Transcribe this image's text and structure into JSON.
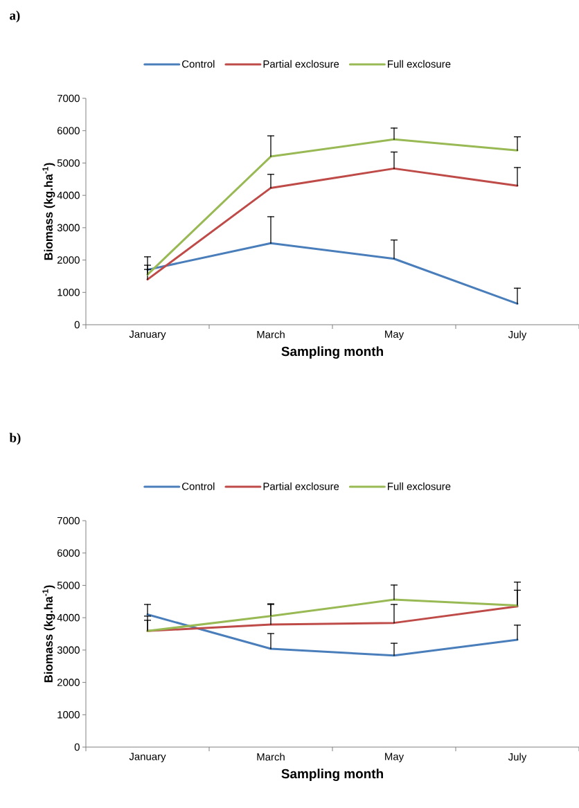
{
  "chart_data": [
    {
      "type": "line",
      "title": "a)",
      "xlabel": "Sampling month",
      "ylabel": "Biomass (kg.ha$^{-1}$)",
      "categories": [
        "January",
        "March",
        "May",
        "July"
      ],
      "series": [
        {
          "name": "Control",
          "color": "#4a7ebb",
          "values": [
            1700,
            2520,
            2040,
            650
          ],
          "errors": [
            [
              1700,
              2100
            ],
            [
              2520,
              3340
            ],
            [
              2040,
              2620
            ],
            [
              650,
              1130
            ]
          ]
        },
        {
          "name": "Partial exclosure",
          "color": "#be4b48",
          "values": [
            1400,
            4230,
            4830,
            4300
          ],
          "errors": [
            [
              1400,
              1840
            ],
            [
              4230,
              4650
            ],
            [
              4830,
              5340
            ],
            [
              4300,
              4860
            ]
          ]
        },
        {
          "name": "Full exclosure",
          "color": "#98b954",
          "values": [
            1550,
            5200,
            5730,
            5390
          ],
          "errors": [
            [
              1550,
              1710
            ],
            [
              5200,
              5840
            ],
            [
              5730,
              6080
            ],
            [
              5390,
              5810
            ]
          ]
        }
      ],
      "ylim": [
        0,
        7000
      ],
      "yticks": [
        0,
        1000,
        2000,
        3000,
        4000,
        5000,
        6000,
        7000
      ],
      "legend": "top",
      "grid": false
    },
    {
      "type": "line",
      "title": "b)",
      "xlabel": "Sampling month",
      "ylabel": "Biomass (kg.ha$^{-1}$)",
      "categories": [
        "January",
        "March",
        "May",
        "July"
      ],
      "series": [
        {
          "name": "Control",
          "color": "#4a7ebb",
          "values": [
            4100,
            3040,
            2830,
            3320
          ],
          "errors": [
            [
              4100,
              4410
            ],
            [
              3040,
              3510
            ],
            [
              2830,
              3210
            ],
            [
              3320,
              3770
            ]
          ]
        },
        {
          "name": "Partial exclosure",
          "color": "#be4b48",
          "values": [
            3590,
            3790,
            3840,
            4350
          ],
          "errors": [
            [
              3590,
              4050
            ],
            [
              3790,
              4410
            ],
            [
              3840,
              4410
            ],
            [
              4350,
              4850
            ]
          ]
        },
        {
          "name": "Full exclosure",
          "color": "#98b954",
          "values": [
            3590,
            4050,
            4560,
            4380
          ],
          "errors": [
            [
              3590,
              3920
            ],
            [
              4050,
              4430
            ],
            [
              4560,
              5010
            ],
            [
              4380,
              5100
            ]
          ]
        }
      ],
      "ylim": [
        0,
        7000
      ],
      "yticks": [
        0,
        1000,
        2000,
        3000,
        4000,
        5000,
        6000,
        7000
      ],
      "legend": "top",
      "grid": false
    }
  ]
}
